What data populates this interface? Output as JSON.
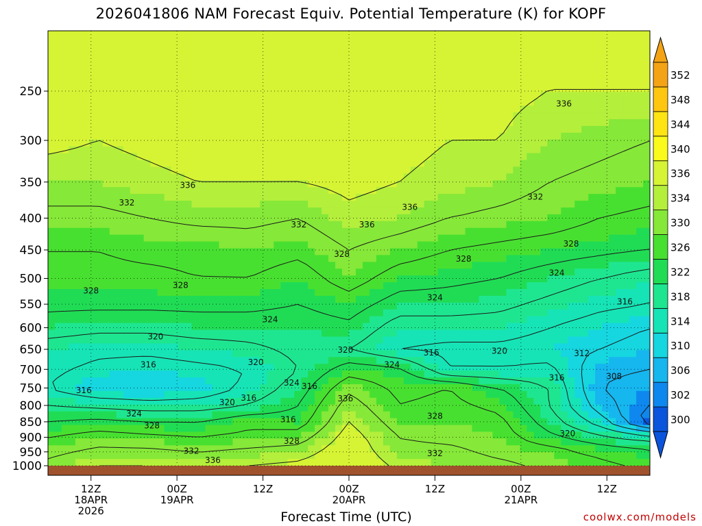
{
  "title": "2026041806 NAM Forecast Equiv. Potential Temperature (K) for KOPF",
  "xlabel": "Forecast Time (UTC)",
  "credit": "coolwx.com/models",
  "chart_data": {
    "type": "heatmap",
    "title": "2026041806 NAM Forecast Equiv. Potential Temperature (K) for KOPF",
    "xlabel": "Forecast Time (UTC)",
    "ylabel": "",
    "y_axis_scale": "log-pressure",
    "y_axis_reversed": true,
    "ylim": [
      1000,
      200
    ],
    "xlim": [
      0,
      84
    ],
    "yticks": [
      250,
      300,
      350,
      400,
      450,
      500,
      550,
      600,
      650,
      700,
      750,
      800,
      850,
      900,
      950,
      1000
    ],
    "xticks": [
      {
        "hour": 6,
        "label": [
          "12Z",
          "18APR",
          "2026"
        ]
      },
      {
        "hour": 18,
        "label": [
          "00Z",
          "19APR"
        ]
      },
      {
        "hour": 30,
        "label": [
          "12Z"
        ]
      },
      {
        "hour": 42,
        "label": [
          "00Z",
          "20APR"
        ]
      },
      {
        "hour": 54,
        "label": [
          "12Z"
        ]
      },
      {
        "hour": 66,
        "label": [
          "00Z",
          "21APR"
        ]
      },
      {
        "hour": 78,
        "label": [
          "12Z"
        ]
      }
    ],
    "grid": true,
    "colorbar": {
      "levels": [
        300,
        302,
        306,
        310,
        314,
        318,
        322,
        326,
        330,
        334,
        336,
        340,
        344,
        348,
        352
      ],
      "colors": [
        "#0a55dc",
        "#0e88ee",
        "#16b6ef",
        "#16d6e0",
        "#16e4b6",
        "#1ee690",
        "#20dc55",
        "#48e030",
        "#86e838",
        "#b4ef3c",
        "#d6f434",
        "#fafa1c",
        "#ffe414",
        "#ffc60f",
        "#f4a314"
      ]
    },
    "theta_e_field": [
      {
        "p": 250,
        "values": [
          338,
          337,
          338,
          339,
          340,
          339,
          338,
          337,
          337,
          337,
          336,
          336,
          336
        ]
      },
      {
        "p": 300,
        "values": [
          337,
          336,
          337,
          338,
          338,
          337,
          337,
          337,
          336,
          336,
          334,
          333,
          332
        ]
      },
      {
        "p": 350,
        "values": [
          334,
          334,
          335,
          336,
          336,
          336,
          337,
          336,
          335,
          334,
          332,
          331,
          330
        ]
      },
      {
        "p": 400,
        "values": [
          331,
          331,
          332,
          333,
          333,
          332,
          335,
          334,
          332,
          331,
          330,
          328,
          327
        ]
      },
      {
        "p": 450,
        "values": [
          328,
          328,
          329,
          329,
          330,
          329,
          332,
          330,
          328,
          327,
          326,
          325,
          324
        ]
      },
      {
        "p": 500,
        "values": [
          327,
          327,
          327,
          328,
          328,
          326,
          330,
          326,
          325,
          324,
          322,
          320,
          318
        ]
      },
      {
        "p": 550,
        "values": [
          325,
          325,
          325,
          325,
          325,
          324,
          326,
          322,
          322,
          321,
          319,
          317,
          316
        ]
      },
      {
        "p": 600,
        "values": [
          322,
          321,
          321,
          322,
          322,
          322,
          323,
          318,
          318,
          318,
          316,
          314,
          312
        ]
      },
      {
        "p": 650,
        "values": [
          318,
          317,
          317,
          318,
          319,
          321,
          320,
          316,
          315,
          315,
          314,
          312,
          310
        ]
      },
      {
        "p": 700,
        "values": [
          317,
          315,
          314,
          315,
          316,
          320,
          326,
          325,
          316,
          316,
          317,
          309,
          308
        ]
      },
      {
        "p": 750,
        "values": [
          316,
          312,
          311,
          313,
          317,
          322,
          331,
          327,
          328,
          324,
          320,
          308,
          306
        ]
      },
      {
        "p": 800,
        "values": [
          320,
          319,
          318,
          318,
          320,
          324,
          334,
          328,
          329,
          327,
          320,
          310,
          304
        ]
      },
      {
        "p": 850,
        "values": [
          324,
          325,
          324,
          324,
          327,
          326,
          336,
          330,
          330,
          329,
          322,
          314,
          301
        ]
      },
      {
        "p": 900,
        "values": [
          328,
          330,
          329,
          328,
          329,
          330,
          338,
          332,
          331,
          330,
          325,
          321,
          318
        ]
      },
      {
        "p": 950,
        "values": [
          331,
          333,
          333,
          332,
          333,
          334,
          339,
          333,
          333,
          331,
          330,
          327,
          325
        ]
      },
      {
        "p": 1000,
        "values": [
          333,
          336,
          336,
          335,
          336,
          337,
          340,
          335,
          334,
          333,
          331,
          329,
          327
        ]
      }
    ],
    "field_hours": [
      0,
      7,
      14,
      21,
      28,
      35,
      42,
      49,
      56,
      63,
      70,
      77,
      84
    ],
    "contour_labels": [
      {
        "text": "336",
        "hour": 72,
        "p": 262
      },
      {
        "text": "336",
        "hour": 19.5,
        "p": 354
      },
      {
        "text": "332",
        "hour": 11,
        "p": 378
      },
      {
        "text": "332",
        "hour": 68,
        "p": 370
      },
      {
        "text": "336",
        "hour": 50.5,
        "p": 384
      },
      {
        "text": "332",
        "hour": 35,
        "p": 410
      },
      {
        "text": "336",
        "hour": 44.5,
        "p": 410
      },
      {
        "text": "328",
        "hour": 41,
        "p": 457
      },
      {
        "text": "328",
        "hour": 58,
        "p": 465
      },
      {
        "text": "328",
        "hour": 73,
        "p": 440
      },
      {
        "text": "324",
        "hour": 71,
        "p": 490
      },
      {
        "text": "328",
        "hour": 6,
        "p": 523
      },
      {
        "text": "328",
        "hour": 18.5,
        "p": 513
      },
      {
        "text": "324",
        "hour": 54,
        "p": 537
      },
      {
        "text": "316",
        "hour": 80.5,
        "p": 545
      },
      {
        "text": "324",
        "hour": 31,
        "p": 582
      },
      {
        "text": "320",
        "hour": 15,
        "p": 620
      },
      {
        "text": "320",
        "hour": 41.5,
        "p": 652
      },
      {
        "text": "316",
        "hour": 53.5,
        "p": 658
      },
      {
        "text": "320",
        "hour": 63,
        "p": 654
      },
      {
        "text": "312",
        "hour": 74.5,
        "p": 660
      },
      {
        "text": "316",
        "hour": 14,
        "p": 688
      },
      {
        "text": "320",
        "hour": 29,
        "p": 682
      },
      {
        "text": "324",
        "hour": 48,
        "p": 688
      },
      {
        "text": "324",
        "hour": 34,
        "p": 736
      },
      {
        "text": "316",
        "hour": 36.5,
        "p": 745
      },
      {
        "text": "316",
        "hour": 71,
        "p": 722
      },
      {
        "text": "308",
        "hour": 79,
        "p": 718
      },
      {
        "text": "316",
        "hour": 5,
        "p": 757
      },
      {
        "text": "316",
        "hour": 28,
        "p": 778
      },
      {
        "text": "320",
        "hour": 25,
        "p": 791
      },
      {
        "text": "336",
        "hour": 41.5,
        "p": 780
      },
      {
        "text": "324",
        "hour": 12,
        "p": 825
      },
      {
        "text": "316",
        "hour": 33.5,
        "p": 843
      },
      {
        "text": "328",
        "hour": 54,
        "p": 832
      },
      {
        "text": "328",
        "hour": 14.5,
        "p": 862
      },
      {
        "text": "320",
        "hour": 72.5,
        "p": 888
      },
      {
        "text": "328",
        "hour": 34,
        "p": 913
      },
      {
        "text": "332",
        "hour": 20,
        "p": 947
      },
      {
        "text": "332",
        "hour": 54,
        "p": 955
      },
      {
        "text": "336",
        "hour": 23,
        "p": 980
      }
    ]
  }
}
